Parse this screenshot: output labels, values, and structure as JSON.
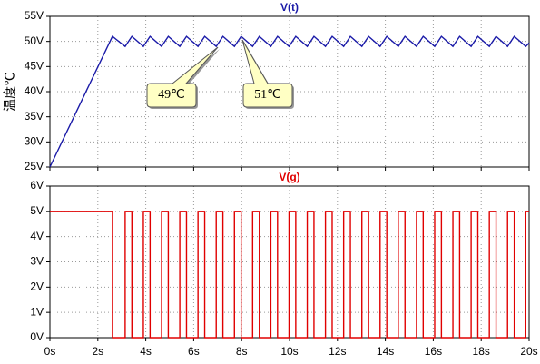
{
  "chart_data": [
    {
      "type": "line",
      "title": "V(t)",
      "ylabel": "温度℃",
      "color": "#1a1aa8",
      "x": [
        0,
        2.61,
        3.14,
        3.42,
        3.9,
        4.18,
        4.66,
        4.94,
        5.42,
        5.7,
        6.18,
        6.46,
        6.94,
        7.22,
        7.7,
        7.98,
        8.46,
        8.74,
        9.22,
        9.5,
        9.98,
        10.26,
        10.74,
        11.02,
        11.5,
        11.78,
        12.26,
        12.54,
        13.02,
        13.3,
        13.78,
        14.06,
        14.54,
        14.82,
        15.3,
        15.58,
        16.06,
        16.34,
        16.82,
        17.1,
        17.58,
        17.86,
        18.34,
        18.62,
        19.1,
        19.38,
        19.86,
        20
      ],
      "values": [
        25,
        51,
        49,
        51,
        49,
        51,
        49,
        51,
        49,
        51,
        49,
        51,
        49,
        51,
        49,
        51,
        49,
        51,
        49,
        51,
        49,
        51,
        49,
        51,
        49,
        51,
        49,
        51,
        49,
        51,
        49,
        51,
        49,
        51,
        49,
        51,
        49,
        51,
        49,
        51,
        49,
        51,
        49,
        51,
        49,
        51,
        49,
        49.7
      ],
      "xlim": [
        0,
        20
      ],
      "xticks": [
        0,
        2,
        4,
        6,
        8,
        10,
        12,
        14,
        16,
        18,
        20
      ],
      "ylim": [
        25,
        55
      ],
      "yticks": [
        {
          "value": 25,
          "label": "25V"
        },
        {
          "value": 30,
          "label": "30V"
        },
        {
          "value": 35,
          "label": "35V"
        },
        {
          "value": 40,
          "label": "40V"
        },
        {
          "value": 45,
          "label": "45V"
        },
        {
          "value": 50,
          "label": "50V"
        },
        {
          "value": 55,
          "label": "55V"
        }
      ],
      "grid": true,
      "annotations": [
        "49℃",
        "51℃"
      ]
    },
    {
      "type": "line",
      "title": "V(g)",
      "color": "#e00000",
      "x": [
        0,
        2.61,
        2.61,
        3.14,
        3.14,
        3.42,
        3.42,
        3.9,
        3.9,
        4.18,
        4.18,
        4.66,
        4.66,
        4.94,
        4.94,
        5.42,
        5.42,
        5.7,
        5.7,
        6.18,
        6.18,
        6.46,
        6.46,
        6.94,
        6.94,
        7.22,
        7.22,
        7.7,
        7.7,
        7.98,
        7.98,
        8.46,
        8.46,
        8.74,
        8.74,
        9.22,
        9.22,
        9.5,
        9.5,
        9.98,
        9.98,
        10.26,
        10.26,
        10.74,
        10.74,
        11.02,
        11.02,
        11.5,
        11.5,
        11.78,
        11.78,
        12.26,
        12.26,
        12.54,
        12.54,
        13.02,
        13.02,
        13.3,
        13.3,
        13.78,
        13.78,
        14.06,
        14.06,
        14.54,
        14.54,
        14.82,
        14.82,
        15.3,
        15.3,
        15.58,
        15.58,
        16.06,
        16.06,
        16.34,
        16.34,
        16.82,
        16.82,
        17.1,
        17.1,
        17.58,
        17.58,
        17.86,
        17.86,
        18.34,
        18.34,
        18.62,
        18.62,
        19.1,
        19.1,
        19.38,
        19.38,
        19.86,
        19.86,
        20
      ],
      "values": [
        5,
        5,
        0,
        0,
        5,
        5,
        0,
        0,
        5,
        5,
        0,
        0,
        5,
        5,
        0,
        0,
        5,
        5,
        0,
        0,
        5,
        5,
        0,
        0,
        5,
        5,
        0,
        0,
        5,
        5,
        0,
        0,
        5,
        5,
        0,
        0,
        5,
        5,
        0,
        0,
        5,
        5,
        0,
        0,
        5,
        5,
        0,
        0,
        5,
        5,
        0,
        0,
        5,
        5,
        0,
        0,
        5,
        5,
        0,
        0,
        5,
        5,
        0,
        0,
        5,
        5,
        0,
        0,
        5,
        5,
        0,
        0,
        5,
        5,
        0,
        0,
        5,
        5,
        0,
        0,
        5,
        5,
        0,
        0,
        5,
        5,
        0,
        0,
        5,
        5,
        0,
        0,
        5,
        5
      ],
      "xlim": [
        0,
        20
      ],
      "xticks": [
        {
          "value": 0,
          "label": "0s"
        },
        {
          "value": 2,
          "label": "2s"
        },
        {
          "value": 4,
          "label": "4s"
        },
        {
          "value": 6,
          "label": "6s"
        },
        {
          "value": 8,
          "label": "8s"
        },
        {
          "value": 10,
          "label": "10s"
        },
        {
          "value": 12,
          "label": "12s"
        },
        {
          "value": 14,
          "label": "14s"
        },
        {
          "value": 16,
          "label": "16s"
        },
        {
          "value": 18,
          "label": "18s"
        },
        {
          "value": 20,
          "label": "20s"
        }
      ],
      "ylim": [
        0,
        6
      ],
      "yticks": [
        {
          "value": 0,
          "label": "0V"
        },
        {
          "value": 1,
          "label": "1V"
        },
        {
          "value": 2,
          "label": "2V"
        },
        {
          "value": 3,
          "label": "3V"
        },
        {
          "value": 4,
          "label": "4V"
        },
        {
          "value": 5,
          "label": "5V"
        },
        {
          "value": 6,
          "label": "6V"
        }
      ],
      "grid": true
    }
  ]
}
